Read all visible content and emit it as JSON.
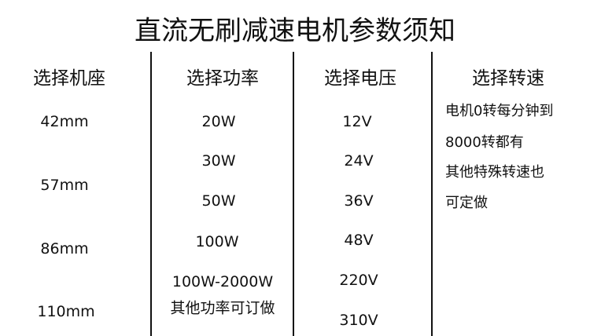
{
  "title": "直流无刷减速电机参数须知",
  "columns": [
    {
      "header": "选择机座",
      "values": [
        "42mm",
        "57mm",
        "86mm",
        "110mm"
      ]
    },
    {
      "header": "选择功率",
      "values": [
        "20W",
        "30W",
        "50W",
        "100W",
        "100W-2000W",
        "其他功率可订做"
      ]
    },
    {
      "header": "选择电压",
      "values": [
        "12V",
        "24V",
        "36V",
        "48V",
        "220V",
        "310V"
      ]
    },
    {
      "header": "选择转速",
      "values": [
        "电机0转每分钟到",
        "8000转都有",
        "其他特殊转速也",
        "可定做"
      ]
    }
  ]
}
